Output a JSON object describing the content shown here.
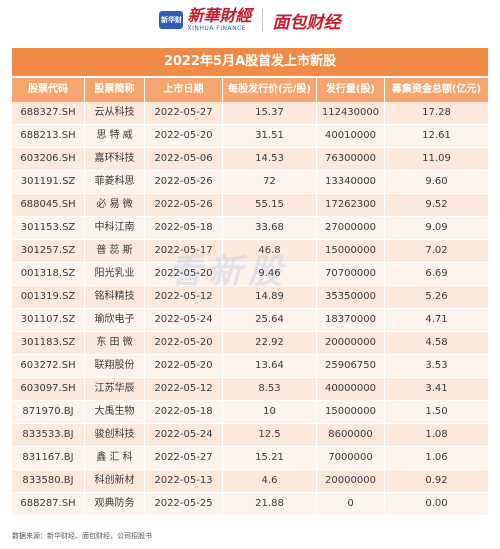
{
  "header": {
    "logo_mark": "新华财经",
    "brand_cn": "新華財經",
    "brand_en": "XINHUA FINANCE",
    "brand_second": "面包财经"
  },
  "table": {
    "title": "2022年5月A股首发上市新股",
    "columns": [
      "股票代码",
      "股票简称",
      "上市日期",
      "每股发行价(元/股)",
      "发行量(股)",
      "募集资金总额(亿元)"
    ],
    "rows": [
      [
        "688327.SH",
        "云从科技",
        "2022-05-27",
        "15.37",
        "112430000",
        "17.28"
      ],
      [
        "688213.SH",
        "思 特 威",
        "2022-05-20",
        "31.51",
        "40010000",
        "12.61"
      ],
      [
        "603206.SH",
        "嘉环科技",
        "2022-05-06",
        "14.53",
        "76300000",
        "11.09"
      ],
      [
        "301191.SZ",
        "菲菱科思",
        "2022-05-26",
        "72",
        "13340000",
        "9.60"
      ],
      [
        "688045.SH",
        "必 易 微",
        "2022-05-26",
        "55.15",
        "17262300",
        "9.52"
      ],
      [
        "301153.SZ",
        "中科江南",
        "2022-05-18",
        "33.68",
        "27000000",
        "9.09"
      ],
      [
        "301257.SZ",
        "普 蕊 斯",
        "2022-05-17",
        "46.8",
        "15000000",
        "7.02"
      ],
      [
        "001318.SZ",
        "阳光乳业",
        "2022-05-20",
        "9.46",
        "70700000",
        "6.69"
      ],
      [
        "001319.SZ",
        "铭科精技",
        "2022-05-12",
        "14.89",
        "35350000",
        "5.26"
      ],
      [
        "301107.SZ",
        "瑜欣电子",
        "2022-05-24",
        "25.64",
        "18370000",
        "4.71"
      ],
      [
        "301183.SZ",
        "东 田 微",
        "2022-05-20",
        "22.92",
        "20000000",
        "4.58"
      ],
      [
        "603272.SH",
        "联翔股份",
        "2022-05-20",
        "13.64",
        "25906750",
        "3.53"
      ],
      [
        "603097.SH",
        "江苏华辰",
        "2022-05-12",
        "8.53",
        "40000000",
        "3.41"
      ],
      [
        "871970.BJ",
        "大禹生物",
        "2022-05-18",
        "10",
        "15000000",
        "1.50"
      ],
      [
        "833533.BJ",
        "骏创科技",
        "2022-05-24",
        "12.5",
        "8600000",
        "1.08"
      ],
      [
        "831167.BJ",
        "鑫 汇 科",
        "2022-05-27",
        "15.21",
        "7000000",
        "1.06"
      ],
      [
        "833580.BJ",
        "科创新材",
        "2022-05-13",
        "4.6",
        "20000000",
        "0.92"
      ],
      [
        "688287.SH",
        "观典防务",
        "2022-05-25",
        "21.88",
        "0",
        "0.00"
      ]
    ]
  },
  "watermark": "看新股",
  "source": "数据来源：新华财经、面包财经，公司招股书",
  "colors": {
    "title_bg": "#f08a45",
    "header_bg": "#f5a66e",
    "row_odd": "#fde9dc",
    "row_even": "#fcf3ec",
    "brand_red": "#c71f2e",
    "brand_blue": "#2f5fb3"
  }
}
